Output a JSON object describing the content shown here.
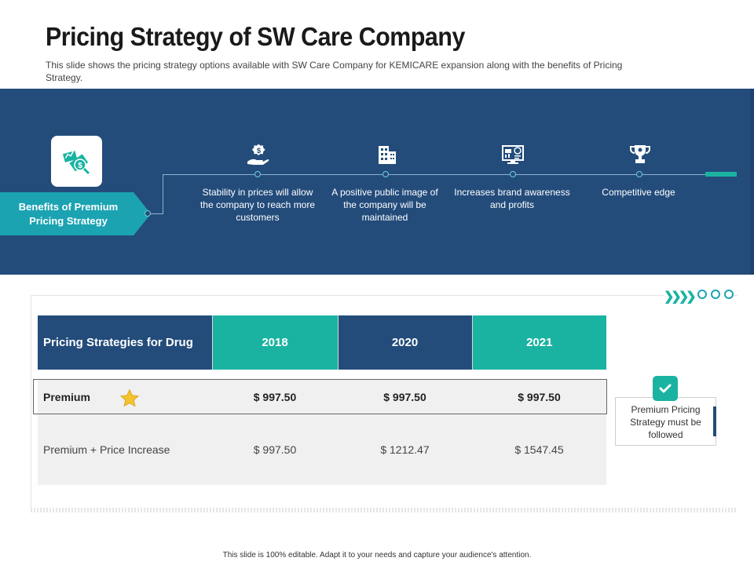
{
  "slide": {
    "title": "Pricing Strategy of SW Care Company",
    "subtitle": "This slide shows the pricing strategy options available  with SW Care Company for KEMICARE expansion along with the benefits of  Pricing Strategy."
  },
  "benefits": {
    "tag_label": "Benefits of Premium Pricing Strategy",
    "items": [
      {
        "icon": "dollar-hand-icon",
        "text": "Stability in prices will allow the company to reach more customers"
      },
      {
        "icon": "building-icon",
        "text": "A positive public image of the company will be maintained"
      },
      {
        "icon": "monitor-analytics-icon",
        "text": "Increases brand awareness and profits"
      },
      {
        "icon": "trophy-icon",
        "text": "Competitive edge"
      }
    ]
  },
  "table": {
    "headers": [
      "Pricing Strategies for Drug",
      "2018",
      "2020",
      "2021"
    ],
    "rows": [
      {
        "label": "Premium",
        "values": [
          "$ 997.50",
          "$ 997.50",
          "$ 997.50"
        ]
      },
      {
        "label": "Premium + Price Increase",
        "values": [
          "$ 997.50",
          "$ 1212.47",
          "$ 1547.45"
        ]
      }
    ]
  },
  "note": {
    "text": "Premium Pricing Strategy must be followed"
  },
  "footer": {
    "text": "This slide is 100% editable. Adapt it to your needs and capture your audience's attention."
  },
  "colors": {
    "navy": "#234c7b",
    "teal": "#1ab3a2",
    "tag_teal": "#1ba3b2"
  }
}
